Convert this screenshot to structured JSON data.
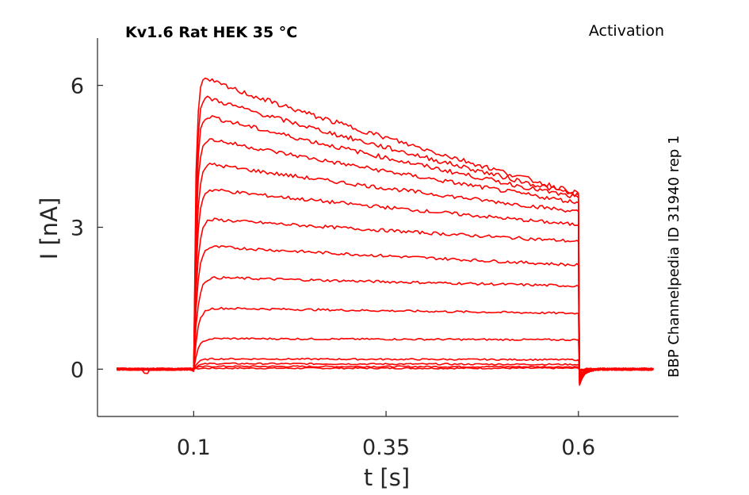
{
  "chart_data": {
    "type": "line",
    "title_left": "Kv1.6  Rat  HEK  35 °C",
    "title_right": "Activation",
    "side_label": "BBP Channelpedia ID 31940 rep 1",
    "xlabel": "t [s]",
    "ylabel": "I [nA]",
    "xlim": [
      -0.025,
      0.73
    ],
    "ylim": [
      -1.0,
      7.0
    ],
    "xticks": [
      0.1,
      0.35,
      0.6
    ],
    "xtick_labels": [
      "0.1",
      "0.35",
      "0.6"
    ],
    "yticks": [
      0,
      3,
      6
    ],
    "ytick_labels": [
      "0",
      "3",
      "6"
    ],
    "grid": false,
    "line_color": "#ff0000",
    "pulse_start": 0.1,
    "pulse_end": 0.6,
    "series": [
      {
        "values": [
          0.02,
          0.02
        ]
      },
      {
        "values": [
          0.06,
          0.05
        ]
      },
      {
        "values": [
          0.12,
          0.1
        ]
      },
      {
        "values": [
          0.22,
          0.2
        ]
      },
      {
        "values": [
          0.65,
          0.62
        ]
      },
      {
        "values": [
          1.3,
          1.18
        ]
      },
      {
        "values": [
          1.95,
          1.76
        ]
      },
      {
        "values": [
          2.62,
          2.2
        ]
      },
      {
        "values": [
          3.2,
          2.7
        ]
      },
      {
        "values": [
          3.85,
          3.05
        ]
      },
      {
        "values": [
          4.4,
          3.33
        ]
      },
      {
        "values": [
          4.95,
          3.52
        ]
      },
      {
        "values": [
          5.45,
          3.62
        ]
      },
      {
        "values": [
          5.85,
          3.68
        ]
      },
      {
        "values": [
          6.25,
          3.72
        ]
      }
    ]
  }
}
